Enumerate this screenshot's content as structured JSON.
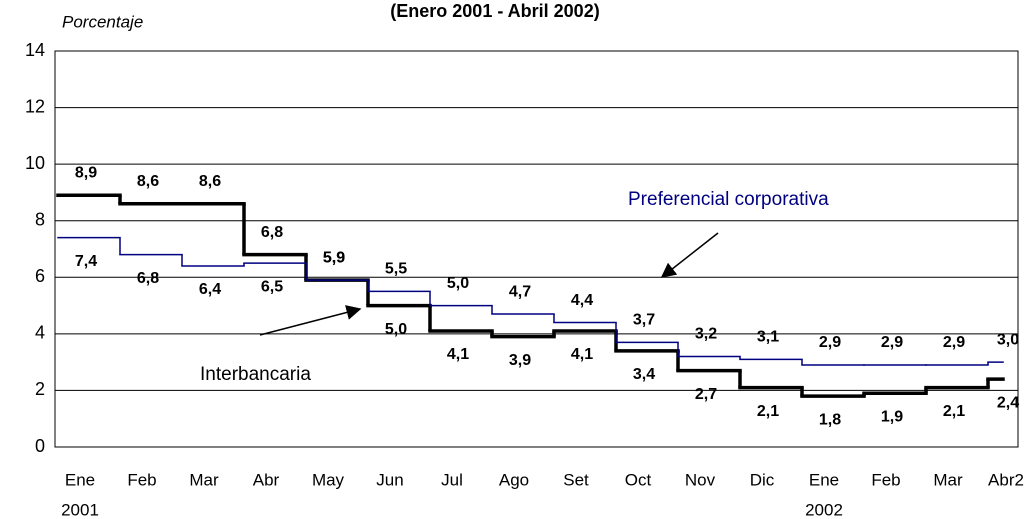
{
  "chart_data": {
    "type": "step",
    "title": "(Enero 2001 - Abril 2002)",
    "y_label": "Porcentaje",
    "categories": [
      "Ene",
      "Feb",
      "Mar",
      "Abr",
      "May",
      "Jun",
      "Jul",
      "Ago",
      "Set",
      "Oct",
      "Nov",
      "Dic",
      "Ene",
      "Feb",
      "Mar",
      "Abr2"
    ],
    "year_labels": [
      "2001",
      null,
      null,
      null,
      null,
      null,
      null,
      null,
      null,
      null,
      null,
      null,
      "2002",
      null,
      null,
      null
    ],
    "series": [
      {
        "name": "Interbancaria",
        "color": "#000000",
        "values": [
          8.9,
          8.6,
          8.6,
          6.8,
          5.9,
          5.0,
          4.1,
          3.9,
          4.1,
          3.4,
          2.7,
          2.1,
          1.8,
          1.9,
          2.1,
          2.4
        ],
        "value_labels": [
          "8,9",
          "8,6",
          "8,6",
          "6,8",
          "5,9",
          "5,0",
          "4,1",
          "3,9",
          "4,1",
          "3,4",
          "2,7",
          "2,1",
          "1,8",
          "1,9",
          "2,1",
          "2,4"
        ]
      },
      {
        "name": "Preferencial corporativa",
        "color": "#000080",
        "values": [
          7.4,
          6.8,
          6.4,
          6.5,
          5.9,
          5.5,
          5.0,
          4.7,
          4.4,
          3.7,
          3.2,
          3.1,
          2.9,
          2.9,
          2.9,
          3.0
        ],
        "value_labels": [
          "7,4",
          "6,8",
          "6,4",
          "6,5",
          "5,9",
          "5,5",
          "5,0",
          "4,7",
          "4,4",
          "3,7",
          "3,2",
          "3,1",
          "2,9",
          "2,9",
          "2,9",
          "3,0"
        ]
      }
    ],
    "ylim": [
      0,
      14
    ],
    "yticks": [
      0,
      2,
      4,
      6,
      8,
      10,
      12,
      14
    ],
    "grid": true
  }
}
